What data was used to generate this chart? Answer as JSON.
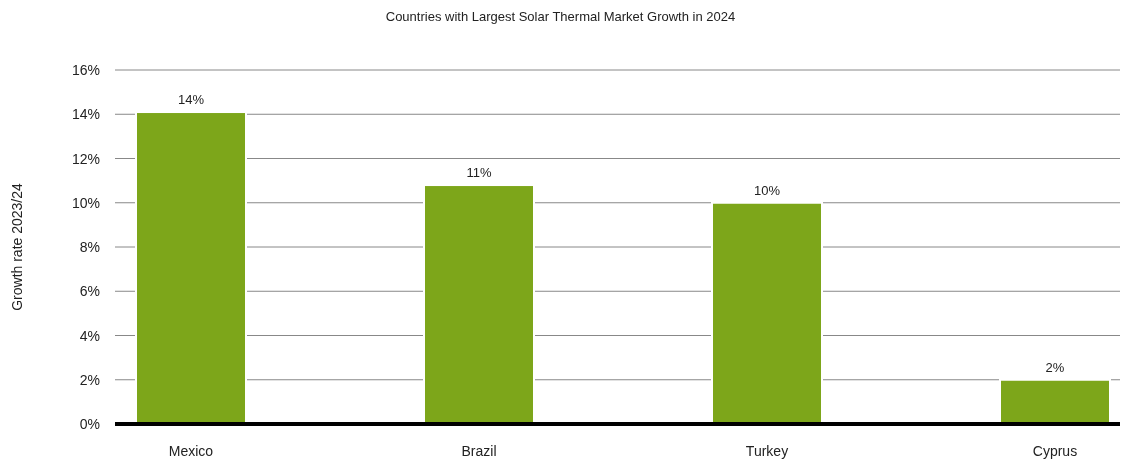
{
  "chart_data": {
    "type": "bar",
    "title": "Countries with Largest Solar Thermal Market Growth in 2024",
    "ylabel": "Growth rate 2023/24",
    "categories": [
      "Mexico",
      "Brazil",
      "Turkey",
      "Cyprus"
    ],
    "values": [
      14.1,
      10.8,
      10.0,
      2.0
    ],
    "value_labels": [
      "14%",
      "11%",
      "10%",
      "2%"
    ],
    "color": "#7da61a",
    "ylim": [
      0,
      16
    ],
    "yticks": [
      {
        "value": 0,
        "label": "0%"
      },
      {
        "value": 2,
        "label": "2%"
      },
      {
        "value": 4,
        "label": "4%"
      },
      {
        "value": 6,
        "label": "6%"
      },
      {
        "value": 8,
        "label": "8%"
      },
      {
        "value": 10,
        "label": "10%"
      },
      {
        "value": 12,
        "label": "12%"
      },
      {
        "value": 14,
        "label": "14%"
      },
      {
        "value": 16,
        "label": "16%"
      }
    ],
    "grid": "y"
  }
}
